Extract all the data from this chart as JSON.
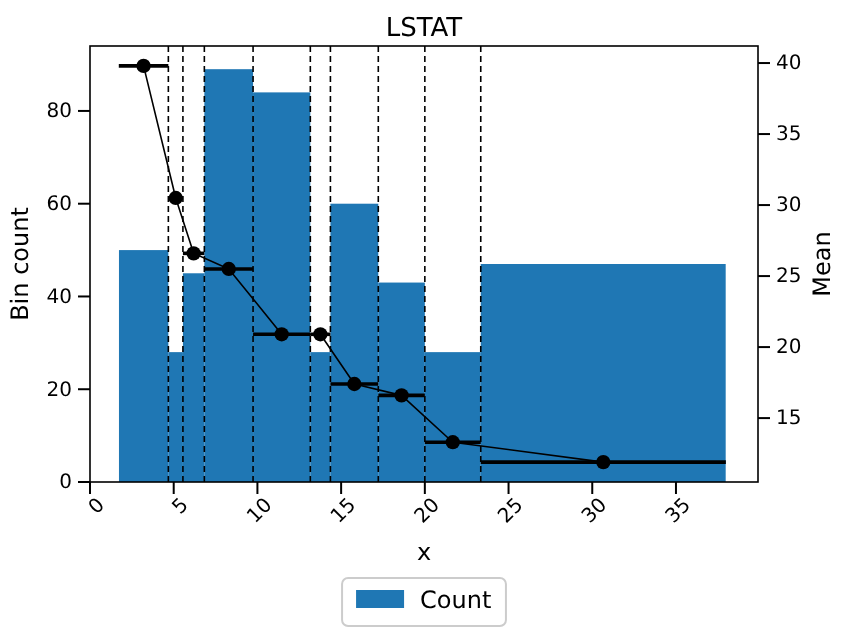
{
  "chart_data": {
    "type": "histogram",
    "title": "LSTAT",
    "xlabel": "x",
    "ylabel": "Bin count",
    "y2label": "Mean",
    "bins": [
      1.73,
      4.68,
      5.55,
      6.83,
      9.74,
      13.16,
      14.36,
      17.22,
      20.0,
      23.34,
      37.97
    ],
    "series": [
      {
        "name": "Count",
        "color": "#1f77b4",
        "values": [
          50,
          28,
          45,
          89,
          84,
          28,
          60,
          43,
          28,
          47
        ]
      },
      {
        "type": "line",
        "axis": "y2",
        "color": "#000000",
        "marker": "circle",
        "x": [
          3.2,
          5.12,
          6.19,
          8.29,
          11.45,
          13.76,
          15.79,
          18.61,
          21.67,
          30.66
        ],
        "values": [
          39.8,
          30.5,
          26.6,
          25.5,
          20.9,
          20.9,
          17.4,
          16.6,
          13.3,
          11.9
        ],
        "xerrors": [
          1.48,
          0.44,
          0.64,
          1.46,
          1.71,
          0.6,
          1.43,
          1.39,
          1.67,
          7.32
        ]
      }
    ],
    "ref_lines": [
      {
        "axis": "x",
        "value": 4.68,
        "line_style": "dashed"
      },
      {
        "axis": "x",
        "value": 5.55,
        "line_style": "dashed"
      },
      {
        "axis": "x",
        "value": 6.83,
        "line_style": "dashed"
      },
      {
        "axis": "x",
        "value": 9.74,
        "line_style": "dashed"
      },
      {
        "axis": "x",
        "value": 13.16,
        "line_style": "dashed"
      },
      {
        "axis": "x",
        "value": 14.36,
        "line_style": "dashed"
      },
      {
        "axis": "x",
        "value": 17.22,
        "line_style": "dashed"
      },
      {
        "axis": "x",
        "value": 20.0,
        "line_style": "dashed"
      },
      {
        "axis": "x",
        "value": 23.34,
        "line_style": "dashed"
      }
    ],
    "xlim": [
      0,
      39.9
    ],
    "xticks": [
      0,
      5,
      10,
      15,
      20,
      25,
      30,
      35
    ],
    "ylim": [
      0,
      94
    ],
    "yticks": [
      0,
      20,
      40,
      60,
      80
    ],
    "y2lim": [
      10.5,
      41.2
    ],
    "y2ticks": [
      15,
      20,
      25,
      30,
      35,
      40
    ],
    "legend": "bottom",
    "grid": false
  }
}
